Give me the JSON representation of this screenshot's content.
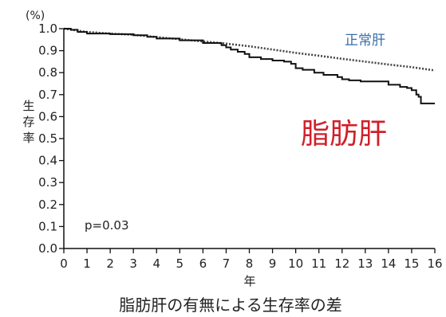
{
  "caption": "脂肪肝の有無による生存率の差",
  "chart_data": {
    "type": "line",
    "title": "",
    "xlabel": "年",
    "ylabel": "生存率",
    "yunit": "(%)",
    "xlim": [
      0,
      16
    ],
    "ylim": [
      0.0,
      1.0
    ],
    "x_ticks": [
      "0",
      "1",
      "2",
      "3",
      "4",
      "5",
      "6",
      "7",
      "8",
      "9",
      "10",
      "11",
      "12",
      "13",
      "14",
      "15",
      "16"
    ],
    "y_ticks": [
      "0.0",
      "0.1",
      "0.2",
      "0.3",
      "0.4",
      "0.5",
      "0.6",
      "0.7",
      "0.8",
      "0.9",
      "1.0"
    ],
    "annotation": "p=0.03",
    "grid": false,
    "series": [
      {
        "name": "正常肝",
        "color": "#3a6ea5",
        "style": "dotted",
        "points": [
          [
            0,
            1.0
          ],
          [
            1,
            0.985
          ],
          [
            2,
            0.978
          ],
          [
            3,
            0.972
          ],
          [
            4,
            0.962
          ],
          [
            5,
            0.952
          ],
          [
            6,
            0.942
          ],
          [
            7,
            0.932
          ],
          [
            8,
            0.92
          ],
          [
            9,
            0.905
          ],
          [
            10,
            0.89
          ],
          [
            11,
            0.877
          ],
          [
            12,
            0.863
          ],
          [
            13,
            0.85
          ],
          [
            14,
            0.837
          ],
          [
            15,
            0.825
          ],
          [
            16,
            0.81
          ]
        ]
      },
      {
        "name": "脂肪肝",
        "color": "#d0202a",
        "style": "solid",
        "points": [
          [
            0,
            1.0
          ],
          [
            0.3,
            0.995
          ],
          [
            0.6,
            0.985
          ],
          [
            1.0,
            0.978
          ],
          [
            2.0,
            0.975
          ],
          [
            3.0,
            0.97
          ],
          [
            3.6,
            0.963
          ],
          [
            4.0,
            0.955
          ],
          [
            5.0,
            0.947
          ],
          [
            6.0,
            0.935
          ],
          [
            6.8,
            0.925
          ],
          [
            7.0,
            0.915
          ],
          [
            7.2,
            0.905
          ],
          [
            7.5,
            0.895
          ],
          [
            7.8,
            0.885
          ],
          [
            8.0,
            0.87
          ],
          [
            8.5,
            0.862
          ],
          [
            9.0,
            0.855
          ],
          [
            9.5,
            0.85
          ],
          [
            9.8,
            0.84
          ],
          [
            10.0,
            0.82
          ],
          [
            10.3,
            0.813
          ],
          [
            10.8,
            0.8
          ],
          [
            11.2,
            0.79
          ],
          [
            11.8,
            0.78
          ],
          [
            12.0,
            0.77
          ],
          [
            12.3,
            0.765
          ],
          [
            12.8,
            0.76
          ],
          [
            13.5,
            0.76
          ],
          [
            14.0,
            0.745
          ],
          [
            14.5,
            0.735
          ],
          [
            14.8,
            0.73
          ],
          [
            15.0,
            0.72
          ],
          [
            15.2,
            0.7
          ],
          [
            15.3,
            0.69
          ],
          [
            15.4,
            0.66
          ],
          [
            15.8,
            0.66
          ],
          [
            16.0,
            0.66
          ]
        ]
      }
    ]
  }
}
